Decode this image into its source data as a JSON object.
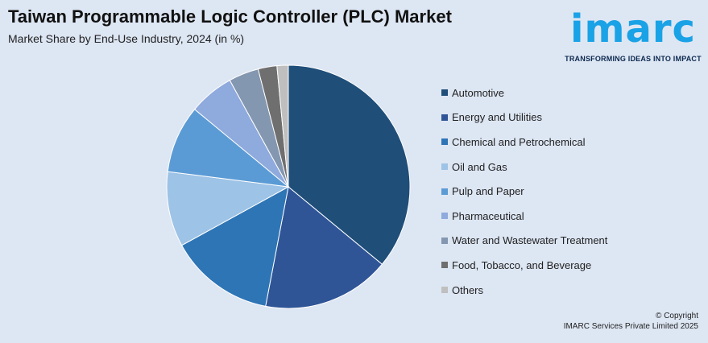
{
  "header": {
    "title": "Taiwan Programmable Logic Controller (PLC) Market",
    "subtitle": "Market Share by End-Use Industry, 2024 (in %)"
  },
  "logo": {
    "wordmark": "imarc",
    "tagline": "TRANSFORMING IDEAS INTO IMPACT",
    "color": "#1aa2e6"
  },
  "footer": {
    "copyright_line1": "© Copyright",
    "copyright_line2": "IMARC Services Private Limited 2025"
  },
  "chart_data": {
    "type": "pie",
    "title": "Taiwan Programmable Logic Controller (PLC) Market",
    "subtitle": "Market Share by End-Use Industry, 2024 (in %)",
    "legend_position": "right",
    "start_angle": "12 o'clock, clockwise",
    "categories": [
      "Automotive",
      "Energy and Utilities",
      "Chemical and Petrochemical",
      "Oil and Gas",
      "Pulp and Paper",
      "Pharmaceutical",
      "Water and Wastewater Treatment",
      "Food, Tobacco, and Beverage",
      "Others"
    ],
    "values": [
      36,
      17,
      14,
      10,
      9,
      6,
      4,
      2.5,
      1.5
    ],
    "colors": [
      "#1f4e79",
      "#2f5597",
      "#2e75b6",
      "#9dc3e6",
      "#5b9bd5",
      "#8faadc",
      "#8497b0",
      "#6f6f6f",
      "#bfbfbf"
    ]
  }
}
